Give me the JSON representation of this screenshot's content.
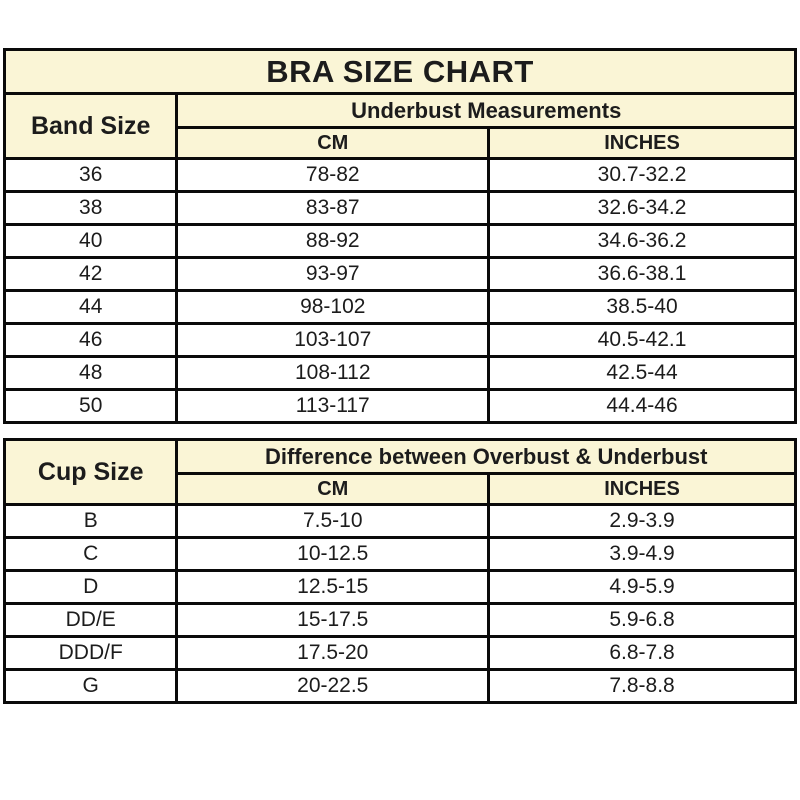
{
  "title": "BRA SIZE CHART",
  "colors": {
    "header_background": "#faf5d6",
    "border": "#0a0a0a",
    "text": "#1c1c1c",
    "data_row_background": "#ffffff"
  },
  "band_table": {
    "row_header": "Band Size",
    "group_header": "Underbust Measurements",
    "columns": {
      "cm": "CM",
      "inches": "INCHES"
    },
    "rows": [
      {
        "band": "36",
        "cm": "78-82",
        "inches": "30.7-32.2"
      },
      {
        "band": "38",
        "cm": "83-87",
        "inches": "32.6-34.2"
      },
      {
        "band": "40",
        "cm": "88-92",
        "inches": "34.6-36.2"
      },
      {
        "band": "42",
        "cm": "93-97",
        "inches": "36.6-38.1"
      },
      {
        "band": "44",
        "cm": "98-102",
        "inches": "38.5-40"
      },
      {
        "band": "46",
        "cm": "103-107",
        "inches": "40.5-42.1"
      },
      {
        "band": "48",
        "cm": "108-112",
        "inches": "42.5-44"
      },
      {
        "band": "50",
        "cm": "113-117",
        "inches": "44.4-46"
      }
    ]
  },
  "cup_table": {
    "row_header": "Cup Size",
    "group_header": "Difference between Overbust & Underbust",
    "columns": {
      "cm": "CM",
      "inches": "INCHES"
    },
    "rows": [
      {
        "cup": "B",
        "cm": "7.5-10",
        "inches": "2.9-3.9"
      },
      {
        "cup": "C",
        "cm": "10-12.5",
        "inches": "3.9-4.9"
      },
      {
        "cup": "D",
        "cm": "12.5-15",
        "inches": "4.9-5.9"
      },
      {
        "cup": "DD/E",
        "cm": "15-17.5",
        "inches": "5.9-6.8"
      },
      {
        "cup": "DDD/F",
        "cm": "17.5-20",
        "inches": "6.8-7.8"
      },
      {
        "cup": "G",
        "cm": "20-22.5",
        "inches": "7.8-8.8"
      }
    ]
  }
}
